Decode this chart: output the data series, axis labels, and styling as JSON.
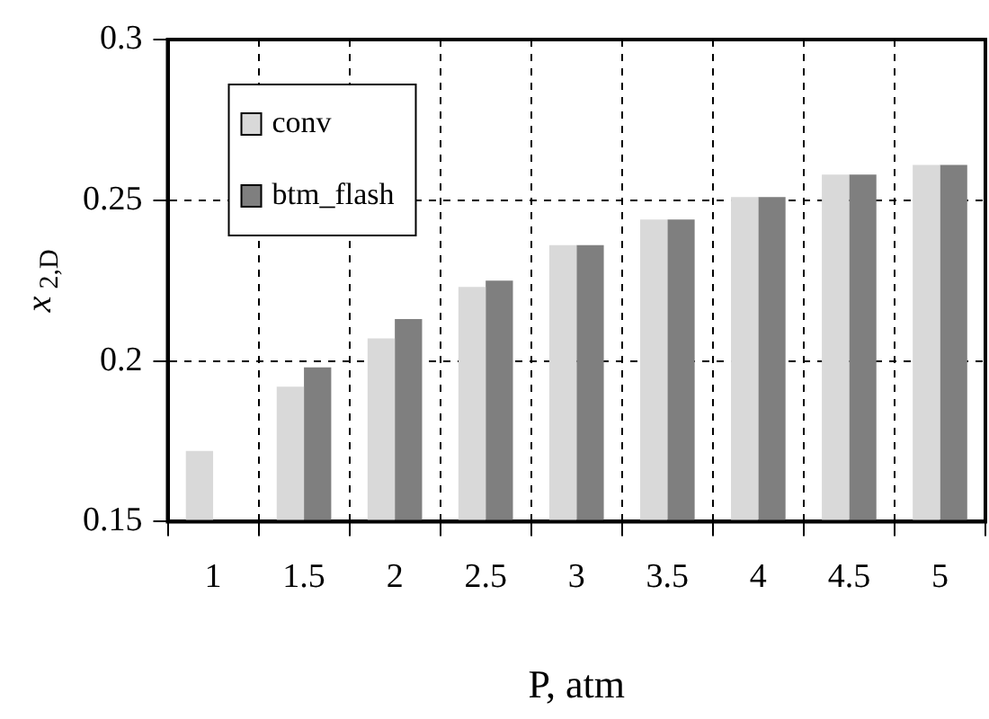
{
  "chart_data": {
    "type": "bar",
    "xlabel": "P, atm",
    "ylabel": "x$_{2,D}$",
    "categories": [
      "1",
      "1.5",
      "2",
      "2.5",
      "3",
      "3.5",
      "4",
      "4.5",
      "5"
    ],
    "series": [
      {
        "name": "conv",
        "color": "#d9d9d9",
        "values": [
          0.172,
          0.192,
          0.207,
          0.223,
          0.236,
          0.244,
          0.251,
          0.258,
          0.261
        ]
      },
      {
        "name": "btm_flash",
        "color": "#7f7f7f",
        "values": [
          null,
          0.198,
          0.213,
          0.225,
          0.236,
          0.244,
          0.251,
          0.258,
          0.261
        ]
      }
    ],
    "ylim": [
      0.15,
      0.3
    ],
    "yticks": [
      0.15,
      0.2,
      0.25,
      0.3
    ],
    "grid": true,
    "legend": "top left"
  }
}
